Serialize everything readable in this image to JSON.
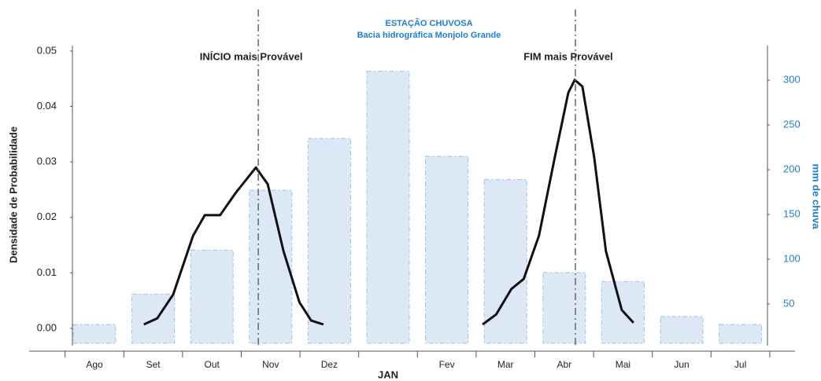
{
  "chart_data": {
    "type": "bar_density",
    "title": "ESTAÇÃO CHUVOSA",
    "subtitle": "Bacia hidrográfica Monjolo Grande",
    "y_label": "Densidade de Probabilidade",
    "y2_label": "mm de chuva",
    "x_label": "JAN",
    "categories": [
      "Ago",
      "Set",
      "Out",
      "Nov",
      "Dez",
      null,
      "Fev",
      "Mar",
      "Abr",
      "Mai",
      "Jun",
      "Jul"
    ],
    "ylim": [
      -0.0027,
      0.0507
    ],
    "yticks": [
      {
        "value": 0,
        "label": "0.00"
      },
      {
        "value": 0.01,
        "label": "0.01"
      },
      {
        "value": 0.02,
        "label": "0.02"
      },
      {
        "value": 0.03,
        "label": "0.03"
      },
      {
        "value": 0.04,
        "label": "0.04"
      },
      {
        "value": 0.05,
        "label": "0.05"
      }
    ],
    "y2lim": [
      6,
      337
    ],
    "y2ticks": [
      50,
      100,
      150,
      200,
      250,
      300
    ],
    "bars": {
      "axis": "y2",
      "color": "#dce8f5",
      "edge_color": "#9dc3e6",
      "values": [
        27,
        61,
        110,
        177,
        235,
        310,
        215,
        189,
        85,
        75,
        36,
        27
      ]
    },
    "curves": [
      {
        "color": "#111111",
        "x": [
          0.84,
          1.07,
          1.34,
          1.68,
          1.88,
          2.14,
          2.41,
          2.75,
          2.95,
          3.22,
          3.49,
          3.69,
          3.9
        ],
        "values": [
          0.0007,
          0.0018,
          0.0061,
          0.0167,
          0.0204,
          0.0204,
          0.0245,
          0.029,
          0.026,
          0.0139,
          0.0047,
          0.0014,
          0.0007
        ]
      },
      {
        "color": "#111111",
        "x": [
          6.61,
          6.84,
          7.1,
          7.31,
          7.57,
          7.84,
          8.07,
          8.18,
          8.31,
          8.51,
          8.71,
          8.98,
          9.18
        ],
        "values": [
          0.0007,
          0.0025,
          0.0071,
          0.0089,
          0.0167,
          0.0309,
          0.0425,
          0.0448,
          0.0436,
          0.0309,
          0.0139,
          0.0033,
          0.001
        ]
      }
    ],
    "markers": [
      {
        "x": 2.79,
        "label": "INÍCIO mais Provável"
      },
      {
        "x": 8.19,
        "label": "FIM mais Provável"
      }
    ]
  }
}
